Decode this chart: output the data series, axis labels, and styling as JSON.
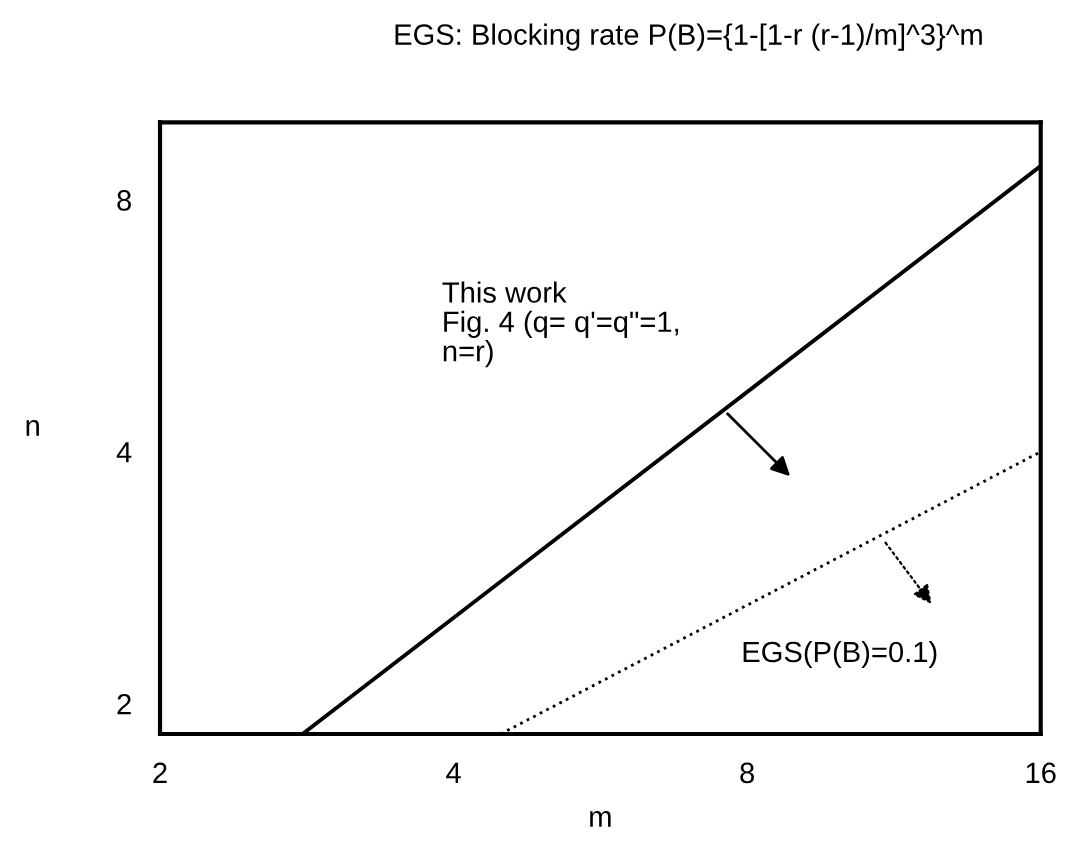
{
  "chart_data": {
    "type": "line",
    "title": "EGS: Blocking rate P(B)={1-[1-r (r-1)/m]^3}^m",
    "xlabel": "m",
    "ylabel": "n",
    "log": "xy",
    "xlim": [
      2,
      16
    ],
    "ylim": [
      1.84,
      9.9
    ],
    "xticks": [
      2,
      4,
      8,
      16
    ],
    "yticks": [
      2,
      4,
      8
    ],
    "grid": false,
    "legend": false,
    "marker": "none",
    "series": [
      {
        "name": "This work\nFig. 4 (q= q'=q\"=1,\nn=r)",
        "color": "#000000",
        "line_style": "solid",
        "x": [
          2.8,
          16
        ],
        "values": [
          1.84,
          8.78
        ]
      },
      {
        "name": "EGS(P(B)=0.1)",
        "color": "#000000",
        "line_style": "dotted",
        "x": [
          4.47,
          16
        ],
        "values": [
          1.84,
          4.0
        ]
      }
    ]
  }
}
